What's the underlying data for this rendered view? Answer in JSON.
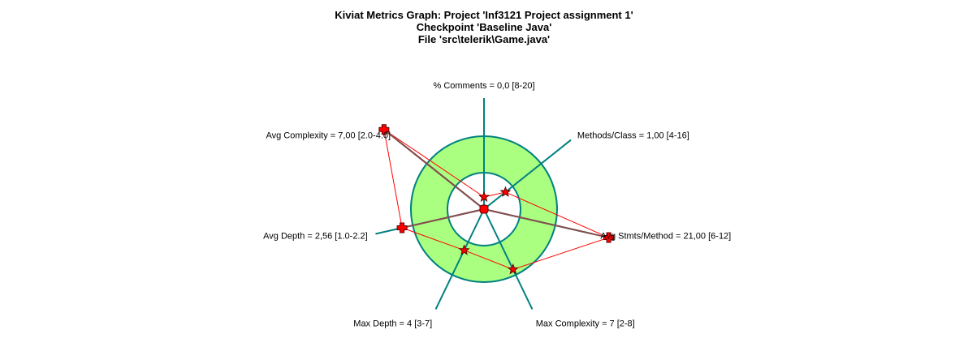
{
  "title_lines": [
    "Kiviat Metrics Graph: Project 'Inf3121 Project assignment 1'",
    "Checkpoint 'Baseline Java'",
    "File 'src\\telerik\\Game.java'"
  ],
  "colors": {
    "band_fill": "#aaff80",
    "circle_stroke": "#008080",
    "axis": "#008080",
    "polygon": "#ff0000",
    "marker": "#ff0000",
    "marker_outline": "#660000",
    "out_of_range_segment": "#8b4b4b"
  },
  "chart_data": {
    "type": "radar",
    "title": "Kiviat Metrics Graph: Project 'Inf3121 Project assignment 1'",
    "axes": [
      {
        "label": "% Comments = 0,0 [8-20]",
        "metric": "% Comments",
        "value": 0.0,
        "min": 8,
        "max": 20,
        "angle_deg": 0
      },
      {
        "label": "Methods/Class = 1,00 [4-16]",
        "metric": "Methods/Class",
        "value": 1.0,
        "min": 4,
        "max": 16,
        "angle_deg": 51.43
      },
      {
        "label": "Avg Stmts/Method = 21,00 [6-12]",
        "metric": "Avg Stmts/Method",
        "value": 21.0,
        "min": 6,
        "max": 12,
        "angle_deg": 102.86
      },
      {
        "label": "Max Complexity = 7 [2-8]",
        "metric": "Max Complexity",
        "value": 7,
        "min": 2,
        "max": 8,
        "angle_deg": 154.29
      },
      {
        "label": "Max Depth = 4 [3-7]",
        "metric": "Max Depth",
        "value": 4,
        "min": 3,
        "max": 7,
        "angle_deg": 205.71
      },
      {
        "label": "Avg Depth = 2,56 [1.0-2.2]",
        "metric": "Avg Depth",
        "value": 2.56,
        "min": 1.0,
        "max": 2.2,
        "angle_deg": 257.14
      },
      {
        "label": "Avg Complexity = 7,00 [2.0-4.0]",
        "metric": "Avg Complexity",
        "value": 7.0,
        "min": 2.0,
        "max": 4.0,
        "angle_deg": 308.57
      }
    ]
  }
}
